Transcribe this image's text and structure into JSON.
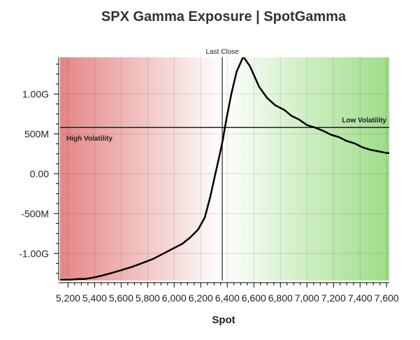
{
  "chart_data": {
    "type": "line",
    "title": "SPX Gamma Exposure | SpotGamma",
    "xlabel": "Spot",
    "ylabel": "",
    "xlim": [
      5140,
      7620
    ],
    "ylim": [
      -1340000000,
      1460000000
    ],
    "x_ticks": [
      5200,
      5400,
      5600,
      5800,
      6000,
      6200,
      6400,
      6600,
      6800,
      7000,
      7200,
      7400,
      7600
    ],
    "x_tick_labels": [
      "5,200",
      "5,400",
      "5,600",
      "5,800",
      "6,000",
      "6,200",
      "6,400",
      "6,600",
      "6,800",
      "7,000",
      "7,200",
      "7,400",
      "7,600"
    ],
    "y_ticks": [
      -1000000000,
      -500000000,
      0,
      500000000,
      1000000000
    ],
    "y_tick_labels": [
      "-1.00G",
      "-500M",
      "0.00",
      "500M",
      "1.00G"
    ],
    "grid": true,
    "series": [
      {
        "name": "",
        "color": "#000000",
        "x": [
          5140,
          5210,
          5280,
          5330,
          5400,
          5450,
          5520,
          5600,
          5680,
          5760,
          5840,
          5920,
          5990,
          6060,
          6120,
          6180,
          6230,
          6270,
          6310,
          6340,
          6365,
          6395,
          6430,
          6470,
          6520,
          6570,
          6640,
          6700,
          6760,
          6830,
          6880,
          6940,
          7000,
          7060,
          7120,
          7180,
          7240,
          7300,
          7360,
          7420,
          7480,
          7540,
          7600,
          7620
        ],
        "y": [
          -1330000000,
          -1330000000,
          -1320000000,
          -1320000000,
          -1300000000,
          -1280000000,
          -1250000000,
          -1210000000,
          -1170000000,
          -1120000000,
          -1070000000,
          -1000000000,
          -940000000,
          -880000000,
          -800000000,
          -700000000,
          -550000000,
          -300000000,
          0,
          220000000,
          420000000,
          700000000,
          1000000000,
          1280000000,
          1470000000,
          1350000000,
          1090000000,
          950000000,
          860000000,
          800000000,
          730000000,
          680000000,
          610000000,
          580000000,
          540000000,
          490000000,
          460000000,
          410000000,
          380000000,
          330000000,
          300000000,
          280000000,
          260000000,
          260000000
        ]
      }
    ],
    "vertical_line": {
      "x": 6362,
      "label": "Last Close"
    },
    "horizontal_line": {
      "y": 580000000
    },
    "annotations": {
      "high_volatility": "High Volatility",
      "low_volatility": "Low Volatility"
    },
    "background_gradient": {
      "left_color": "#e58585",
      "right_color": "#9ddd88",
      "pivot_x": 6362
    }
  }
}
